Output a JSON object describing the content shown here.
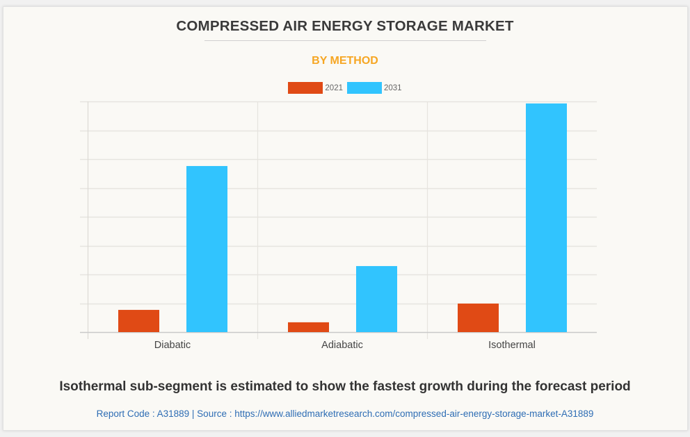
{
  "header": {
    "title": "COMPRESSED AIR ENERGY STORAGE MARKET",
    "subtitle": "BY METHOD"
  },
  "legend": [
    {
      "label": "2021",
      "color": "#e04a15"
    },
    {
      "label": "2031",
      "color": "#31c4fe"
    }
  ],
  "chart_data": {
    "type": "bar",
    "title": "COMPRESSED AIR ENERGY STORAGE MARKET",
    "subtitle": "BY METHOD",
    "categories": [
      "Diabatic",
      "Adiabatic",
      "Isothermal"
    ],
    "series": [
      {
        "name": "2021",
        "color": "#e04a15",
        "values": [
          0.77,
          0.34,
          0.99
        ]
      },
      {
        "name": "2031",
        "color": "#31c4fe",
        "values": [
          5.76,
          2.29,
          7.93
        ]
      }
    ],
    "xlabel": "",
    "ylabel": "",
    "ylim": [
      0,
      8
    ],
    "y_units": "relative (gridline units; no y-axis tick labels shown)",
    "grid": true,
    "legend_position": "top-center"
  },
  "footer": {
    "note": "Isothermal sub-segment is estimated to show the fastest growth during the forecast period",
    "source": "Report Code : A31889  |  Source : https://www.alliedmarketresearch.com/compressed-air-energy-storage-market-A31889"
  }
}
